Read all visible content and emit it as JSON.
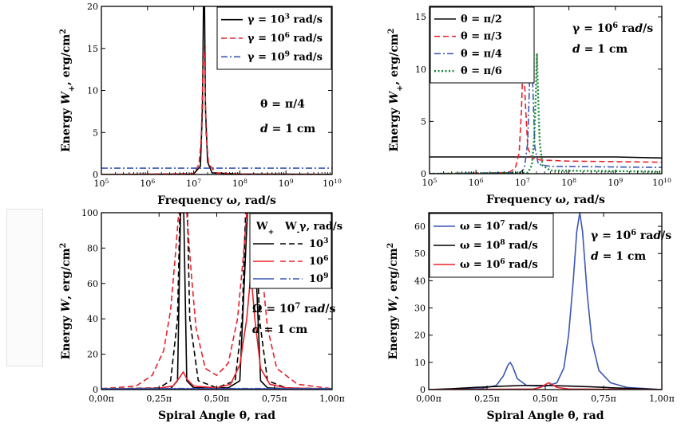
{
  "chart_data": [
    {
      "id": "tl",
      "type": "line",
      "xscale": "log",
      "xlim": [
        100000,
        10000000000
      ],
      "ylim": [
        0,
        20
      ],
      "xticks": [
        100000,
        1000000,
        10000000,
        100000000,
        1000000000,
        10000000000
      ],
      "xticklabels": [
        [
          "10",
          "5"
        ],
        [
          "10",
          "6"
        ],
        [
          "10",
          "7"
        ],
        [
          "10",
          "8"
        ],
        [
          "10",
          "9"
        ],
        [
          "10",
          "10"
        ]
      ],
      "yticks": [
        0,
        5,
        10,
        15,
        20
      ],
      "yticklabels": [
        "0",
        "5",
        "10",
        "15",
        "20"
      ],
      "xlabel": "Frequency ω, rad/s",
      "ylabel": "Energy W_+, erg/cm²",
      "legend": [
        {
          "label": "γ = 10³ rad/s",
          "color": "#000000",
          "dash": "solid"
        },
        {
          "label": "γ = 10⁶ rad/s",
          "color": "#e8202a",
          "dash": "dash"
        },
        {
          "label": "γ = 10⁹ rad/s",
          "color": "#3a55b4",
          "dash": "dashdot"
        }
      ],
      "annotations": [
        "θ = π/4",
        "d = 1 cm"
      ],
      "series": [
        {
          "color": "#000000",
          "dash": "solid",
          "points": [
            [
              100000,
              0
            ],
            [
              10000000,
              0.05
            ],
            [
              14000000,
              1.0
            ],
            [
              15500000,
              8
            ],
            [
              16300000,
              20
            ],
            [
              17200000,
              20
            ],
            [
              18000000,
              8
            ],
            [
              20000000,
              1.5
            ],
            [
              25000000,
              0.2
            ],
            [
              100000000,
              0.05
            ],
            [
              10000000000,
              0.02
            ]
          ]
        },
        {
          "color": "#e8202a",
          "dash": "dash",
          "points": [
            [
              100000,
              0
            ],
            [
              10000000,
              0.1
            ],
            [
              13000000,
              1.2
            ],
            [
              14500000,
              4
            ],
            [
              15500000,
              10
            ],
            [
              16500000,
              15.3
            ],
            [
              17200000,
              14
            ],
            [
              18500000,
              5
            ],
            [
              21000000,
              1.3
            ],
            [
              30000000,
              0.2
            ],
            [
              100000000,
              0.05
            ],
            [
              10000000000,
              0.02
            ]
          ]
        },
        {
          "color": "#3a55b4",
          "dash": "dashdot",
          "points": [
            [
              100000,
              0.75
            ],
            [
              10000000000,
              0.75
            ]
          ]
        }
      ]
    },
    {
      "id": "tr",
      "type": "line",
      "xscale": "log",
      "xlim": [
        100000,
        10000000000
      ],
      "ylim": [
        0,
        16
      ],
      "xticks": [
        100000,
        1000000,
        10000000,
        100000000,
        1000000000,
        10000000000
      ],
      "xticklabels": [
        [
          "10",
          "5"
        ],
        [
          "10",
          "6"
        ],
        [
          "10",
          "7"
        ],
        [
          "10",
          "8"
        ],
        [
          "10",
          "9"
        ],
        [
          "10",
          "10"
        ]
      ],
      "yticks": [
        0,
        5,
        10,
        15
      ],
      "yticklabels": [
        "0",
        "5",
        "10",
        "15"
      ],
      "xlabel": "Frequency ω, rad/s",
      "ylabel": "Energy W_+, erg/cm²",
      "legend": [
        {
          "label": "θ = π/2",
          "color": "#000000",
          "dash": "solid"
        },
        {
          "label": "θ = π/3",
          "color": "#e8202a",
          "dash": "dash"
        },
        {
          "label": "θ = π/4",
          "color": "#3a55b4",
          "dash": "dashdot"
        },
        {
          "label": "θ = π/6",
          "color": "#1a8a3a",
          "dash": "dot"
        }
      ],
      "annotations": [
        "γ = 10⁶ rad/s",
        "d = 1 cm"
      ],
      "series": [
        {
          "color": "#000000",
          "dash": "solid",
          "points": [
            [
              100000,
              1.6
            ],
            [
              1000000000,
              1.6
            ],
            [
              10000000000,
              1.5
            ]
          ]
        },
        {
          "color": "#e8202a",
          "dash": "dash",
          "points": [
            [
              100000,
              0
            ],
            [
              5000000,
              0.1
            ],
            [
              7000000,
              0.5
            ],
            [
              8500000,
              2
            ],
            [
              9500000,
              6
            ],
            [
              10500000,
              12
            ],
            [
              11500000,
              7
            ],
            [
              13000000,
              2.5
            ],
            [
              16000000,
              1.5
            ],
            [
              25000000,
              1.3
            ],
            [
              100000000,
              1.2
            ],
            [
              10000000000,
              1.1
            ]
          ]
        },
        {
          "color": "#3a55b4",
          "dash": "dashdot",
          "points": [
            [
              100000,
              0
            ],
            [
              9000000,
              0.1
            ],
            [
              11000000,
              0.5
            ],
            [
              13000000,
              3
            ],
            [
              14500000,
              10
            ],
            [
              15500000,
              15.3
            ],
            [
              16500000,
              9
            ],
            [
              18500000,
              2.5
            ],
            [
              22000000,
              0.9
            ],
            [
              40000000,
              0.7
            ],
            [
              10000000000,
              0.6
            ]
          ]
        },
        {
          "color": "#1a8a3a",
          "dash": "dot",
          "points": [
            [
              100000,
              0
            ],
            [
              13000000,
              0.1
            ],
            [
              16000000,
              0.8
            ],
            [
              18000000,
              3.5
            ],
            [
              19500000,
              8
            ],
            [
              20500000,
              11.5
            ],
            [
              21500000,
              8
            ],
            [
              23500000,
              3
            ],
            [
              27000000,
              0.8
            ],
            [
              40000000,
              0.3
            ],
            [
              10000000000,
              0.2
            ]
          ]
        }
      ]
    },
    {
      "id": "bl",
      "type": "line",
      "xscale": "linear",
      "xlim": [
        0,
        1
      ],
      "ylim": [
        0,
        100
      ],
      "xticks": [
        0,
        0.25,
        0.5,
        0.75,
        1
      ],
      "xticklabels": [
        "0,00π",
        "0,25π",
        "0,50π",
        "0,75π",
        "1,00π"
      ],
      "yticks": [
        0,
        20,
        40,
        60,
        80,
        100
      ],
      "yticklabels": [
        "0",
        "20",
        "40",
        "60",
        "80",
        "100"
      ],
      "xlabel": "Spiral Angle θ, rad",
      "ylabel": "Energy W, erg/cm²",
      "legend_header": [
        "W₊",
        "W₋",
        "γ, rad/s"
      ],
      "legend": [
        {
          "label": "10³",
          "color": "#000000"
        },
        {
          "label": "10⁶",
          "color": "#e8202a"
        },
        {
          "label": "10⁹",
          "color": "#3a55b4"
        }
      ],
      "annotations": [
        "Ω = 10⁷ rad/s",
        "d = 1 cm"
      ],
      "series": [
        {
          "color": "#000000",
          "dash": "solid",
          "points": [
            [
              0,
              0.3
            ],
            [
              0.3,
              0.5
            ],
            [
              0.33,
              5
            ],
            [
              0.343,
              100
            ],
            [
              0.357,
              100
            ],
            [
              0.37,
              5
            ],
            [
              0.4,
              1
            ],
            [
              0.55,
              1
            ],
            [
              0.6,
              5
            ],
            [
              0.633,
              100
            ],
            [
              0.66,
              100
            ],
            [
              0.69,
              5
            ],
            [
              0.72,
              1
            ],
            [
              0.8,
              0.5
            ],
            [
              1,
              0.3
            ]
          ]
        },
        {
          "color": "#000000",
          "dash": "dash",
          "points": [
            [
              0,
              0.3
            ],
            [
              0.25,
              1
            ],
            [
              0.3,
              5
            ],
            [
              0.33,
              40
            ],
            [
              0.34,
              100
            ],
            [
              0.373,
              100
            ],
            [
              0.383,
              40
            ],
            [
              0.42,
              5
            ],
            [
              0.5,
              1
            ],
            [
              0.58,
              5
            ],
            [
              0.61,
              40
            ],
            [
              0.625,
              100
            ],
            [
              0.67,
              100
            ],
            [
              0.685,
              40
            ],
            [
              0.72,
              5
            ],
            [
              0.8,
              1
            ],
            [
              1,
              0.3
            ]
          ]
        },
        {
          "color": "#e8202a",
          "dash": "solid",
          "points": [
            [
              0,
              0.3
            ],
            [
              0.25,
              0.8
            ],
            [
              0.31,
              2
            ],
            [
              0.34,
              7
            ],
            [
              0.355,
              10
            ],
            [
              0.37,
              6
            ],
            [
              0.4,
              2
            ],
            [
              0.5,
              1
            ],
            [
              0.56,
              3
            ],
            [
              0.6,
              14
            ],
            [
              0.63,
              40
            ],
            [
              0.648,
              66
            ],
            [
              0.665,
              40
            ],
            [
              0.69,
              12
            ],
            [
              0.73,
              3
            ],
            [
              0.8,
              1
            ],
            [
              1,
              0.3
            ]
          ]
        },
        {
          "color": "#e8202a",
          "dash": "dash",
          "points": [
            [
              0,
              0.5
            ],
            [
              0.15,
              2
            ],
            [
              0.22,
              8
            ],
            [
              0.27,
              22
            ],
            [
              0.3,
              45
            ],
            [
              0.32,
              75
            ],
            [
              0.335,
              100
            ],
            [
              0.37,
              100
            ],
            [
              0.39,
              65
            ],
            [
              0.41,
              35
            ],
            [
              0.45,
              12
            ],
            [
              0.5,
              8
            ],
            [
              0.55,
              15
            ],
            [
              0.59,
              40
            ],
            [
              0.615,
              75
            ],
            [
              0.63,
              100
            ],
            [
              0.675,
              100
            ],
            [
              0.69,
              75
            ],
            [
              0.72,
              35
            ],
            [
              0.76,
              12
            ],
            [
              0.85,
              3
            ],
            [
              1,
              0.5
            ]
          ]
        },
        {
          "color": "#3a55b4",
          "dash": "solid",
          "points": [
            [
              0,
              0.4
            ],
            [
              1,
              0.4
            ]
          ]
        },
        {
          "color": "#3a55b4",
          "dash": "dashdot",
          "points": [
            [
              0,
              0.6
            ],
            [
              1,
              0.6
            ]
          ]
        }
      ]
    },
    {
      "id": "br",
      "type": "line",
      "xscale": "linear",
      "xlim": [
        0,
        1
      ],
      "ylim": [
        0,
        65
      ],
      "xticks": [
        0,
        0.25,
        0.5,
        0.75,
        1
      ],
      "xticklabels": [
        "0,00π",
        "0,25π",
        "0,50π",
        "0,75π",
        "1,00π"
      ],
      "yticks": [
        0,
        10,
        20,
        30,
        40,
        50,
        60
      ],
      "yticklabels": [
        "0",
        "10",
        "20",
        "30",
        "40",
        "50",
        "60"
      ],
      "xlabel": "Spiral Angle θ, rad",
      "ylabel": "Energy W, erg/cm²",
      "legend": [
        {
          "label": "ω = 10⁷ rad/s",
          "color": "#3a55b4",
          "dash": "solid"
        },
        {
          "label": "ω = 10⁸ rad/s",
          "color": "#000000",
          "dash": "solid"
        },
        {
          "label": "ω = 10⁶ rad/s",
          "color": "#e8202a",
          "dash": "solid"
        }
      ],
      "annotations": [
        "γ = 10⁶ rad/s",
        "d = 1 cm"
      ],
      "series": [
        {
          "color": "#3a55b4",
          "dash": "solid",
          "points": [
            [
              0,
              0
            ],
            [
              0.22,
              0.3
            ],
            [
              0.29,
              1.5
            ],
            [
              0.32,
              5
            ],
            [
              0.34,
              9
            ],
            [
              0.35,
              10
            ],
            [
              0.36,
              8.5
            ],
            [
              0.38,
              4
            ],
            [
              0.42,
              1.5
            ],
            [
              0.5,
              1.2
            ],
            [
              0.55,
              2.5
            ],
            [
              0.58,
              8
            ],
            [
              0.6,
              20
            ],
            [
              0.62,
              40
            ],
            [
              0.635,
              58
            ],
            [
              0.648,
              65
            ],
            [
              0.66,
              58
            ],
            [
              0.68,
              35
            ],
            [
              0.7,
              18
            ],
            [
              0.73,
              7
            ],
            [
              0.78,
              2.5
            ],
            [
              0.85,
              0.8
            ],
            [
              1,
              0
            ]
          ]
        },
        {
          "color": "#000000",
          "dash": "solid",
          "points": [
            [
              0,
              0
            ],
            [
              0.1,
              0.3
            ],
            [
              0.2,
              0.8
            ],
            [
              0.3,
              1.2
            ],
            [
              0.4,
              1.5
            ],
            [
              0.5,
              1.5
            ],
            [
              0.6,
              1.3
            ],
            [
              0.7,
              1
            ],
            [
              0.8,
              0.6
            ],
            [
              0.9,
              0.3
            ],
            [
              1,
              0
            ]
          ]
        },
        {
          "color": "#e8202a",
          "dash": "solid",
          "points": [
            [
              0,
              0
            ],
            [
              0.45,
              0.2
            ],
            [
              0.48,
              0.8
            ],
            [
              0.5,
              1.8
            ],
            [
              0.515,
              2.5
            ],
            [
              0.53,
              1.8
            ],
            [
              0.55,
              0.8
            ],
            [
              0.6,
              0.2
            ],
            [
              1,
              0
            ]
          ]
        }
      ]
    }
  ]
}
